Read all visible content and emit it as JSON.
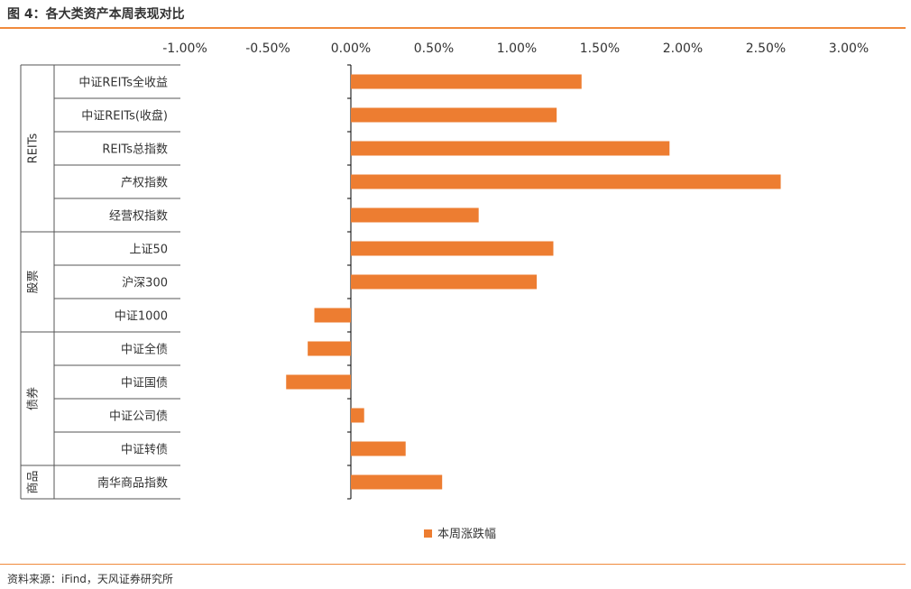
{
  "figure": {
    "title": "图 4：各大类资产本周表现对比",
    "source": "资料来源：iFind，天风证券研究所"
  },
  "colors": {
    "bar": "#ed7d31",
    "rule": "#f08a3c",
    "axis": "#000000",
    "text": "#333333"
  },
  "chart_data": {
    "type": "bar",
    "orientation": "horizontal",
    "x_ticks": [
      "-1.00%",
      "-0.50%",
      "0.00%",
      "0.50%",
      "1.00%",
      "1.50%",
      "2.00%",
      "2.50%",
      "3.00%"
    ],
    "xlim": [
      -1.0,
      3.0
    ],
    "x_unit": "%",
    "categories": [
      "中证REITs全收益",
      "中证REITs(收盘)",
      "REITs总指数",
      "产权指数",
      "经营权指数",
      "上证50",
      "沪深300",
      "中证1000",
      "中证全债",
      "中证国债",
      "中证公司债",
      "中证转债",
      "南华商品指数"
    ],
    "groups": [
      {
        "label": "REITs",
        "count": 5
      },
      {
        "label": "股票",
        "count": 3
      },
      {
        "label": "债券",
        "count": 4
      },
      {
        "label": "商品",
        "count": 1
      }
    ],
    "series": [
      {
        "name": "本周涨跌幅",
        "values": [
          1.39,
          1.24,
          1.92,
          2.59,
          0.77,
          1.22,
          1.12,
          -0.22,
          -0.26,
          -0.39,
          0.08,
          0.33,
          0.55
        ]
      }
    ],
    "legend_position": "bottom-center",
    "grid": false
  }
}
